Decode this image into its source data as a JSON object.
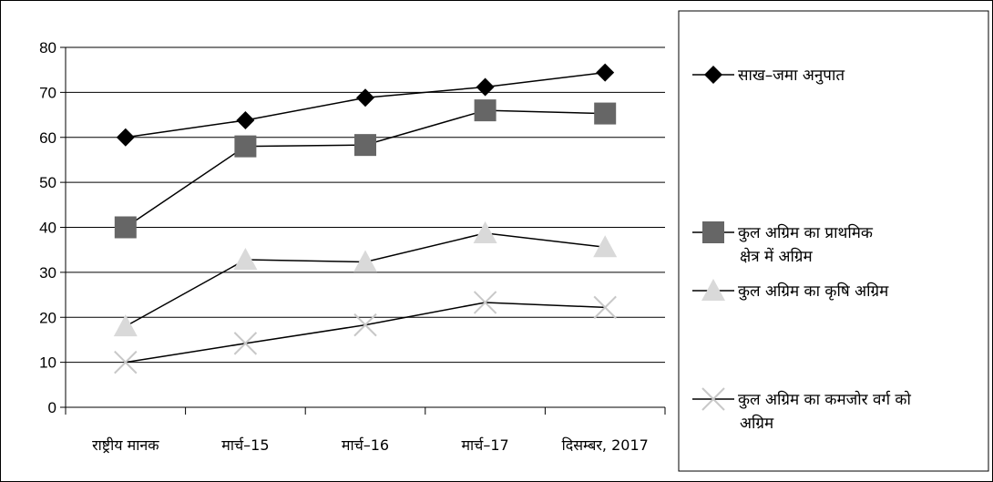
{
  "chart_data": {
    "type": "line",
    "categories": [
      "राष्ट्रीय मानक",
      "मार्च–15",
      "मार्च–16",
      "मार्च–17",
      "दिसम्बर, 2017"
    ],
    "ylim": [
      0,
      80
    ],
    "yticks": [
      "0",
      "10",
      "20",
      "30",
      "40",
      "50",
      "60",
      "70",
      "80"
    ],
    "grid": true,
    "legend_position": "right",
    "series": [
      {
        "name": "साख–जमा अनुपात",
        "values": [
          60,
          63.8,
          68.8,
          71.2,
          74.4
        ],
        "marker": "diamond",
        "color": "#000000"
      },
      {
        "name": "कुल अग्रिम का प्राथमिक क्षेत्र में अग्रिम",
        "values": [
          40,
          58,
          58.3,
          66,
          65.3
        ],
        "marker": "square",
        "color": "#666666"
      },
      {
        "name": "कुल अग्रिम का कृषि अग्रिम",
        "values": [
          18,
          32.8,
          32.3,
          38.7,
          35.6
        ],
        "marker": "triangle",
        "color": "#d9d9d9"
      },
      {
        "name": "कुल अग्रिम का कमजोर वर्ग को अग्रिम",
        "values": [
          10,
          14.2,
          18.3,
          23.3,
          22.2
        ],
        "marker": "x",
        "color": "#c8c8c8"
      }
    ]
  }
}
